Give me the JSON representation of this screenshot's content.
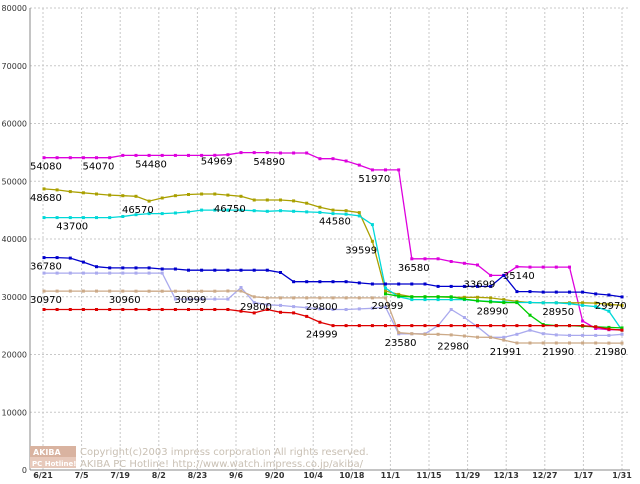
{
  "chart_data": {
    "type": "line",
    "title": "",
    "xlabel": "",
    "ylabel": "",
    "ylim": [
      0,
      80000
    ],
    "y_ticks": [
      0,
      10000,
      20000,
      30000,
      40000,
      50000,
      60000,
      70000,
      80000
    ],
    "grid": true,
    "x_ticks": [
      "6/21",
      "7/5",
      "7/19",
      "8/2",
      "8/23",
      "9/6",
      "9/20",
      "10/4",
      "10/18",
      "11/1",
      "11/15",
      "11/29",
      "12/13",
      "12/27",
      "1/17",
      "1/31"
    ],
    "x_count": 45,
    "series": [
      {
        "color": "#dd00dd",
        "values": [
          54080,
          54070,
          54070,
          54070,
          54070,
          54070,
          54480,
          54480,
          54480,
          54480,
          54480,
          54480,
          54480,
          54500,
          54600,
          54969,
          54969,
          54969,
          54890,
          54890,
          54890,
          53900,
          53900,
          53500,
          52800,
          51970,
          51970,
          51970,
          36580,
          36580,
          36580,
          36100,
          35800,
          35500,
          33699,
          33699,
          35200,
          35140,
          35140,
          35140,
          35140,
          25800,
          24500,
          24300,
          24300
        ]
      },
      {
        "color": "#aaa000",
        "values": [
          48680,
          48500,
          48200,
          48000,
          47800,
          47600,
          47500,
          47400,
          46570,
          47100,
          47500,
          47700,
          47800,
          47800,
          47600,
          47400,
          46750,
          46750,
          46750,
          46600,
          46200,
          45500,
          45000,
          44900,
          44580,
          39599,
          31000,
          30400,
          30000,
          30000,
          30000,
          29900,
          29900,
          29900,
          29800,
          29500,
          29200,
          29000,
          28950,
          28950,
          28950,
          28950,
          28900,
          28700,
          28500
        ]
      },
      {
        "color": "#00d8d8",
        "values": [
          43700,
          43700,
          43700,
          43700,
          43700,
          43700,
          43900,
          44200,
          44400,
          44400,
          44500,
          44700,
          45000,
          45000,
          45000,
          45000,
          44900,
          44800,
          44900,
          44800,
          44700,
          44600,
          44400,
          44300,
          44000,
          42500,
          31500,
          30000,
          29500,
          29500,
          29500,
          29500,
          29500,
          29300,
          29200,
          29100,
          29000,
          29000,
          28950,
          28950,
          28800,
          28500,
          28300,
          27500,
          24200
        ]
      },
      {
        "color": "#0000cc",
        "values": [
          36780,
          36780,
          36700,
          36000,
          35200,
          35000,
          35000,
          35000,
          35000,
          34800,
          34800,
          34600,
          34600,
          34600,
          34600,
          34600,
          34600,
          34600,
          34200,
          32600,
          32600,
          32600,
          32600,
          32600,
          32400,
          32200,
          32200,
          32200,
          32200,
          32200,
          31800,
          31800,
          31800,
          31800,
          31800,
          33699,
          30900,
          30900,
          30800,
          30800,
          30800,
          30800,
          30500,
          30300,
          29970
        ]
      },
      {
        "color": "#aaaaee",
        "values": [
          34100,
          34100,
          34100,
          34100,
          34100,
          34100,
          34100,
          34100,
          34100,
          34100,
          29600,
          29600,
          29600,
          29600,
          29600,
          31600,
          29000,
          28600,
          28500,
          28300,
          28100,
          27900,
          27800,
          27800,
          27900,
          28000,
          28200,
          23580,
          23580,
          23580,
          25000,
          27800,
          26400,
          24800,
          22980,
          22980,
          23500,
          24200,
          23600,
          23400,
          23300,
          23300,
          23300,
          23300,
          23500
        ]
      },
      {
        "color": "#ccaa88",
        "values": [
          30970,
          30970,
          30970,
          30970,
          30970,
          30970,
          30970,
          30960,
          30960,
          30960,
          30960,
          30960,
          30960,
          30960,
          30999,
          30999,
          30000,
          29800,
          29800,
          29800,
          29800,
          29800,
          29800,
          29800,
          29800,
          29800,
          29800,
          23800,
          23600,
          23500,
          23500,
          23400,
          23200,
          23000,
          22980,
          22500,
          21991,
          21991,
          21991,
          21990,
          21990,
          21990,
          21990,
          21980,
          21980
        ]
      },
      {
        "color": "#00cc00",
        "values": [
          null,
          null,
          null,
          null,
          null,
          null,
          null,
          null,
          null,
          null,
          null,
          null,
          null,
          null,
          null,
          null,
          null,
          null,
          null,
          null,
          null,
          null,
          null,
          null,
          null,
          null,
          30500,
          30100,
          30000,
          29999,
          29999,
          29999,
          29600,
          29300,
          29100,
          28990,
          28990,
          26800,
          25200,
          25000,
          25000,
          24900,
          24800,
          24700,
          24600
        ]
      },
      {
        "color": "#dd0000",
        "values": [
          27800,
          27800,
          27800,
          27800,
          27800,
          27800,
          27800,
          27800,
          27800,
          27800,
          27800,
          27800,
          27800,
          27800,
          27800,
          27500,
          27200,
          27800,
          27300,
          27200,
          26600,
          25600,
          24999,
          24999,
          25000,
          25000,
          25000,
          25000,
          25000,
          25000,
          25000,
          25000,
          25000,
          25000,
          25000,
          25000,
          25000,
          25000,
          25000,
          25000,
          25000,
          25000,
          24800,
          24400,
          24200
        ]
      }
    ],
    "data_labels": [
      {
        "text": "54080",
        "x": 0,
        "y": 54080
      },
      {
        "text": "54070",
        "x": 4,
        "y": 54070
      },
      {
        "text": "54480",
        "x": 8,
        "y": 54480
      },
      {
        "text": "54969",
        "x": 13,
        "y": 54969
      },
      {
        "text": "54890",
        "x": 17,
        "y": 54890
      },
      {
        "text": "51970",
        "x": 25,
        "y": 51970
      },
      {
        "text": "48680",
        "x": 0,
        "y": 48680
      },
      {
        "text": "46570",
        "x": 7,
        "y": 46570
      },
      {
        "text": "46750",
        "x": 14,
        "y": 46750
      },
      {
        "text": "43700",
        "x": 2,
        "y": 43700
      },
      {
        "text": "44580",
        "x": 22,
        "y": 44580
      },
      {
        "text": "39599",
        "x": 24,
        "y": 39599
      },
      {
        "text": "36780",
        "x": 0,
        "y": 36780
      },
      {
        "text": "36580",
        "x": 28,
        "y": 36580
      },
      {
        "text": "35140",
        "x": 36,
        "y": 35140
      },
      {
        "text": "33699",
        "x": 33,
        "y": 33699
      },
      {
        "text": "30970",
        "x": 0,
        "y": 30970
      },
      {
        "text": "30960",
        "x": 6,
        "y": 30960
      },
      {
        "text": "30999",
        "x": 11,
        "y": 30999
      },
      {
        "text": "29800",
        "x": 16,
        "y": 29800
      },
      {
        "text": "29800",
        "x": 21,
        "y": 29800
      },
      {
        "text": "29999",
        "x": 26,
        "y": 29999
      },
      {
        "text": "28990",
        "x": 34,
        "y": 28990
      },
      {
        "text": "28950",
        "x": 39,
        "y": 28950
      },
      {
        "text": "29970",
        "x": 43,
        "y": 29970
      },
      {
        "text": "24999",
        "x": 21,
        "y": 24999
      },
      {
        "text": "23580",
        "x": 27,
        "y": 23580
      },
      {
        "text": "22980",
        "x": 31,
        "y": 22980
      },
      {
        "text": "21991",
        "x": 35,
        "y": 21991
      },
      {
        "text": "21990",
        "x": 39,
        "y": 21990
      },
      {
        "text": "21980",
        "x": 43,
        "y": 21980
      }
    ]
  },
  "watermark": {
    "logo_top": "AKIBA",
    "logo_bottom": "PC Hotline!",
    "line1": "Copyright(c)2003 impress corporation All rights reserved.",
    "line2": "AKIBA PC Hotline! http://www.watch.impress.co.jp/akiba/"
  }
}
